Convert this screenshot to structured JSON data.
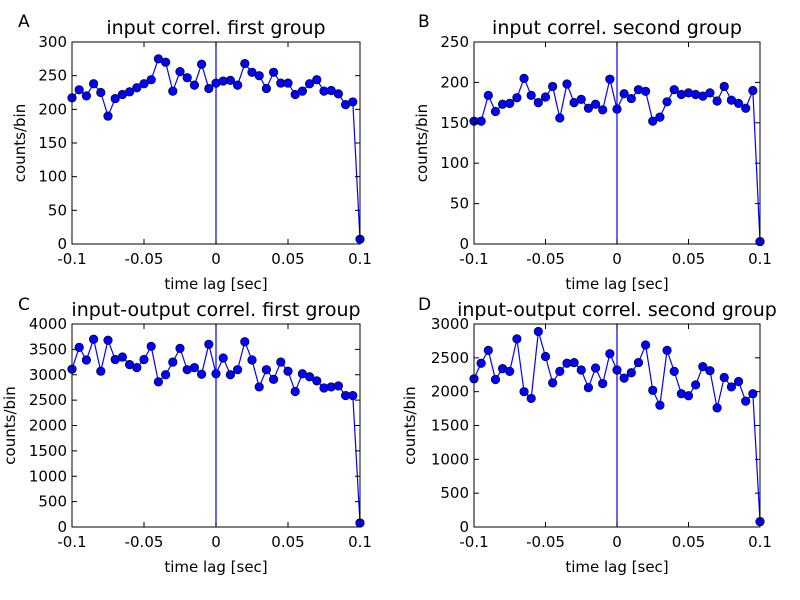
{
  "figure": {
    "background": "#ffffff",
    "line_color": "#0000ff",
    "marker_color": "#0000ff",
    "marker_edge_color": "#000000",
    "frame_color": "#000000"
  },
  "chart_data": [
    {
      "type": "line",
      "panel_label": "A",
      "title": "input correl. first group",
      "xlabel": "time lag [sec]",
      "ylabel": "counts/bin",
      "xlim": [
        -0.1,
        0.1
      ],
      "ylim": [
        0,
        300
      ],
      "xticks": [
        -0.1,
        -0.05,
        0,
        0.05,
        0.1
      ],
      "xtick_labels": [
        "-0.1",
        "-0.05",
        "0",
        "0.05",
        "0.1"
      ],
      "yticks": [
        0,
        50,
        100,
        150,
        200,
        250,
        300
      ],
      "ytick_labels": [
        "0",
        "50",
        "100",
        "150",
        "200",
        "250",
        "300"
      ],
      "vline_x": 0,
      "grid": false,
      "markers": "circle",
      "x": [
        -0.1,
        -0.095,
        -0.09,
        -0.085,
        -0.08,
        -0.075,
        -0.07,
        -0.065,
        -0.06,
        -0.055,
        -0.05,
        -0.045,
        -0.04,
        -0.035,
        -0.03,
        -0.025,
        -0.02,
        -0.015,
        -0.01,
        -0.005,
        0.0,
        0.005,
        0.01,
        0.015,
        0.02,
        0.025,
        0.03,
        0.035,
        0.04,
        0.045,
        0.05,
        0.055,
        0.06,
        0.065,
        0.07,
        0.075,
        0.08,
        0.085,
        0.09,
        0.095,
        0.1
      ],
      "y": [
        217,
        229,
        220,
        238,
        225,
        190,
        216,
        222,
        226,
        232,
        238,
        244,
        275,
        270,
        227,
        256,
        247,
        236,
        267,
        231,
        239,
        242,
        243,
        236,
        268,
        255,
        250,
        231,
        255,
        239,
        239,
        222,
        227,
        238,
        244,
        227,
        228,
        223,
        207,
        211,
        7
      ]
    },
    {
      "type": "line",
      "panel_label": "B",
      "title": "input correl. second group",
      "xlabel": "time lag [sec]",
      "ylabel": "counts/bin",
      "xlim": [
        -0.1,
        0.1
      ],
      "ylim": [
        0,
        250
      ],
      "xticks": [
        -0.1,
        -0.05,
        0,
        0.05,
        0.1
      ],
      "xtick_labels": [
        "-0.1",
        "-0.05",
        "0",
        "0.05",
        "0.1"
      ],
      "yticks": [
        0,
        50,
        100,
        150,
        200,
        250
      ],
      "ytick_labels": [
        "0",
        "50",
        "100",
        "150",
        "200",
        "250"
      ],
      "vline_x": 0,
      "grid": false,
      "markers": "circle",
      "x": [
        -0.1,
        -0.095,
        -0.09,
        -0.085,
        -0.08,
        -0.075,
        -0.07,
        -0.065,
        -0.06,
        -0.055,
        -0.05,
        -0.045,
        -0.04,
        -0.035,
        -0.03,
        -0.025,
        -0.02,
        -0.015,
        -0.01,
        -0.005,
        0.0,
        0.005,
        0.01,
        0.015,
        0.02,
        0.025,
        0.03,
        0.035,
        0.04,
        0.045,
        0.05,
        0.055,
        0.06,
        0.065,
        0.07,
        0.075,
        0.08,
        0.085,
        0.09,
        0.095,
        0.1
      ],
      "y": [
        152,
        152,
        184,
        164,
        173,
        174,
        181,
        205,
        184,
        175,
        182,
        195,
        156,
        198,
        175,
        179,
        168,
        173,
        166,
        204,
        167,
        186,
        180,
        191,
        189,
        152,
        157,
        176,
        191,
        185,
        187,
        185,
        183,
        187,
        177,
        195,
        178,
        174,
        168,
        190,
        3
      ]
    },
    {
      "type": "line",
      "panel_label": "C",
      "title": "input-output correl. first group",
      "xlabel": "time lag [sec]",
      "ylabel": "counts/bin",
      "xlim": [
        -0.1,
        0.1
      ],
      "ylim": [
        0,
        4000
      ],
      "xticks": [
        -0.1,
        -0.05,
        0,
        0.05,
        0.1
      ],
      "xtick_labels": [
        "-0.1",
        "-0.05",
        "0",
        "0.05",
        "0.1"
      ],
      "yticks": [
        0,
        500,
        1000,
        1500,
        2000,
        2500,
        3000,
        3500,
        4000
      ],
      "ytick_labels": [
        "0",
        "500",
        "1000",
        "1500",
        "2000",
        "2500",
        "3000",
        "3500",
        "4000"
      ],
      "vline_x": 0,
      "grid": false,
      "markers": "circle",
      "x": [
        -0.1,
        -0.095,
        -0.09,
        -0.085,
        -0.08,
        -0.075,
        -0.07,
        -0.065,
        -0.06,
        -0.055,
        -0.05,
        -0.045,
        -0.04,
        -0.035,
        -0.03,
        -0.025,
        -0.02,
        -0.015,
        -0.01,
        -0.005,
        0.0,
        0.005,
        0.01,
        0.015,
        0.02,
        0.025,
        0.03,
        0.035,
        0.04,
        0.045,
        0.05,
        0.055,
        0.06,
        0.065,
        0.07,
        0.075,
        0.08,
        0.085,
        0.09,
        0.095,
        0.1
      ],
      "y": [
        3110,
        3540,
        3290,
        3700,
        3070,
        3680,
        3300,
        3350,
        3200,
        3140,
        3300,
        3560,
        2860,
        3000,
        3250,
        3520,
        3100,
        3140,
        3010,
        3600,
        3020,
        3330,
        3000,
        3100,
        3650,
        3290,
        2760,
        3100,
        2910,
        3250,
        3070,
        2670,
        3020,
        2960,
        2880,
        2740,
        2760,
        2780,
        2590,
        2590,
        80
      ]
    },
    {
      "type": "line",
      "panel_label": "D",
      "title": "input-output correl. second group",
      "xlabel": "time lag [sec]",
      "ylabel": "counts/bin",
      "xlim": [
        -0.1,
        0.1
      ],
      "ylim": [
        0,
        3000
      ],
      "xticks": [
        -0.1,
        -0.05,
        0,
        0.05,
        0.1
      ],
      "xtick_labels": [
        "-0.1",
        "-0.05",
        "0",
        "0.05",
        "0.1"
      ],
      "yticks": [
        0,
        500,
        1000,
        1500,
        2000,
        2500,
        3000
      ],
      "ytick_labels": [
        "0",
        "500",
        "1000",
        "1500",
        "2000",
        "2500",
        "3000"
      ],
      "vline_x": 0,
      "grid": false,
      "markers": "circle",
      "x": [
        -0.1,
        -0.095,
        -0.09,
        -0.085,
        -0.08,
        -0.075,
        -0.07,
        -0.065,
        -0.06,
        -0.055,
        -0.05,
        -0.045,
        -0.04,
        -0.035,
        -0.03,
        -0.025,
        -0.02,
        -0.015,
        -0.01,
        -0.005,
        0.0,
        0.005,
        0.01,
        0.015,
        0.02,
        0.025,
        0.03,
        0.035,
        0.04,
        0.045,
        0.05,
        0.055,
        0.06,
        0.065,
        0.07,
        0.075,
        0.08,
        0.085,
        0.09,
        0.095,
        0.1
      ],
      "y": [
        2190,
        2420,
        2610,
        2180,
        2340,
        2300,
        2780,
        2000,
        1900,
        2890,
        2520,
        2130,
        2300,
        2420,
        2430,
        2320,
        2060,
        2350,
        2120,
        2560,
        2320,
        2200,
        2280,
        2430,
        2690,
        2020,
        1800,
        2610,
        2300,
        1970,
        1940,
        2100,
        2370,
        2310,
        1760,
        2210,
        2070,
        2150,
        1860,
        1970,
        80
      ]
    }
  ]
}
